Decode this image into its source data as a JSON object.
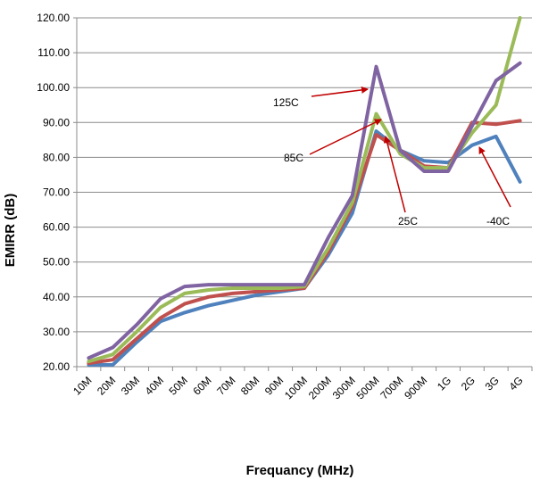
{
  "chart_data": {
    "type": "line",
    "title": "",
    "xlabel": "Frequancy (MHz)",
    "ylabel": "EMIRR (dB)",
    "ylim": [
      20,
      120
    ],
    "yticks": [
      "20.00",
      "30.00",
      "40.00",
      "50.00",
      "60.00",
      "70.00",
      "80.00",
      "90.00",
      "100.00",
      "110.00",
      "120.00"
    ],
    "categories": [
      "10M",
      "20M",
      "30M",
      "40M",
      "50M",
      "60M",
      "70M",
      "80M",
      "90M",
      "100M",
      "200M",
      "300M",
      "500M",
      "700M",
      "900M",
      "1G",
      "2G",
      "3G",
      "4G"
    ],
    "grid": "horizontal",
    "legend": "none",
    "series": [
      {
        "color": "#4f81bd",
        "values": [
          20.5,
          20.5,
          27,
          33,
          35.5,
          37.5,
          39,
          40.5,
          41.5,
          42.5,
          52,
          64,
          87.5,
          82,
          79,
          78.5,
          83.5,
          86,
          73
        ]
      },
      {
        "color": "#c0504d",
        "values": [
          21,
          22,
          28,
          34,
          38,
          40,
          41,
          41.5,
          42,
          42.5,
          53,
          66,
          86.5,
          82,
          77.5,
          77,
          90,
          89.5,
          90.5
        ]
      },
      {
        "color": "#9bbb59",
        "values": [
          21.5,
          23.5,
          30,
          37,
          41,
          42,
          42.5,
          42.5,
          42.5,
          43,
          54,
          67,
          92.5,
          81,
          77,
          77,
          87,
          95,
          120
        ]
      },
      {
        "color": "#8064a2",
        "values": [
          22.5,
          25.5,
          32,
          39.5,
          43,
          43.5,
          43.5,
          43.5,
          43.5,
          43.5,
          57,
          69,
          106,
          82,
          76,
          76,
          89,
          102,
          107
        ]
      }
    ],
    "annotations": [
      {
        "text": "125C",
        "color": "#c00000"
      },
      {
        "text": "85C",
        "color": "#c00000"
      },
      {
        "text": "25C",
        "color": "#c00000"
      },
      {
        "text": "-40C",
        "color": "#c00000"
      }
    ]
  }
}
